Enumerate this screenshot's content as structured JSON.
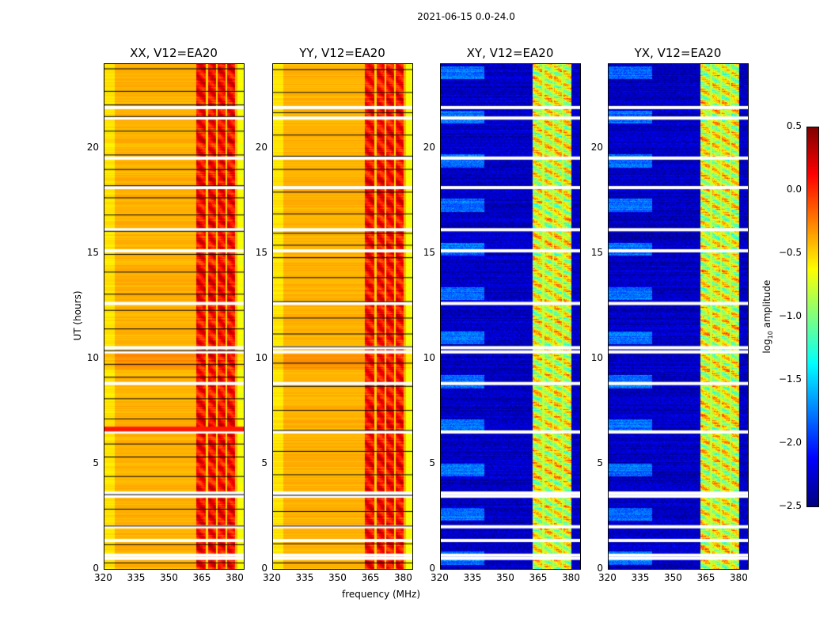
{
  "chart_data": {
    "type": "heatmap",
    "title": "2021-06-15 0.0-24.0",
    "xlabel": "frequency (MHz)",
    "ylabel": "UT (hours)",
    "xlim": [
      320,
      384
    ],
    "ylim": [
      0,
      24
    ],
    "xticks": [
      "320",
      "335",
      "350",
      "365",
      "380"
    ],
    "yticks": [
      "0",
      "5",
      "10",
      "15",
      "20"
    ],
    "colormap": "jet",
    "colorbar": {
      "label": "log10 amplitude",
      "label_base": "log",
      "label_sub": "10",
      "label_rest": " amplitude",
      "range": [
        -2.5,
        0.5
      ],
      "ticks": [
        "0.5",
        "0.0",
        "−0.5",
        "−1.0",
        "−1.5",
        "−2.0",
        "−2.5"
      ]
    },
    "panels": [
      {
        "title": "XX, V12=EA20",
        "kind": "parallel"
      },
      {
        "title": "YY, V12=EA20",
        "kind": "parallel"
      },
      {
        "title": "XY, V12=EA20",
        "kind": "cross"
      },
      {
        "title": "YX, V12=EA20",
        "kind": "cross"
      }
    ],
    "bright_band_mhz": [
      362,
      380
    ],
    "subband_edges_mhz": [
      367,
      371.5,
      376
    ],
    "parallel_base_log_amp": -0.4,
    "parallel_band_log_amp": 0.1,
    "cross_base_log_amp": -2.3,
    "cross_band_log_amp": -0.7,
    "flagged_hours": [
      0.5,
      0.65,
      1.35,
      2.0,
      3.45,
      3.6,
      6.5,
      8.8,
      10.3,
      10.5,
      12.6,
      15.1,
      16.1,
      18.1,
      19.5,
      21.4,
      21.9
    ]
  }
}
